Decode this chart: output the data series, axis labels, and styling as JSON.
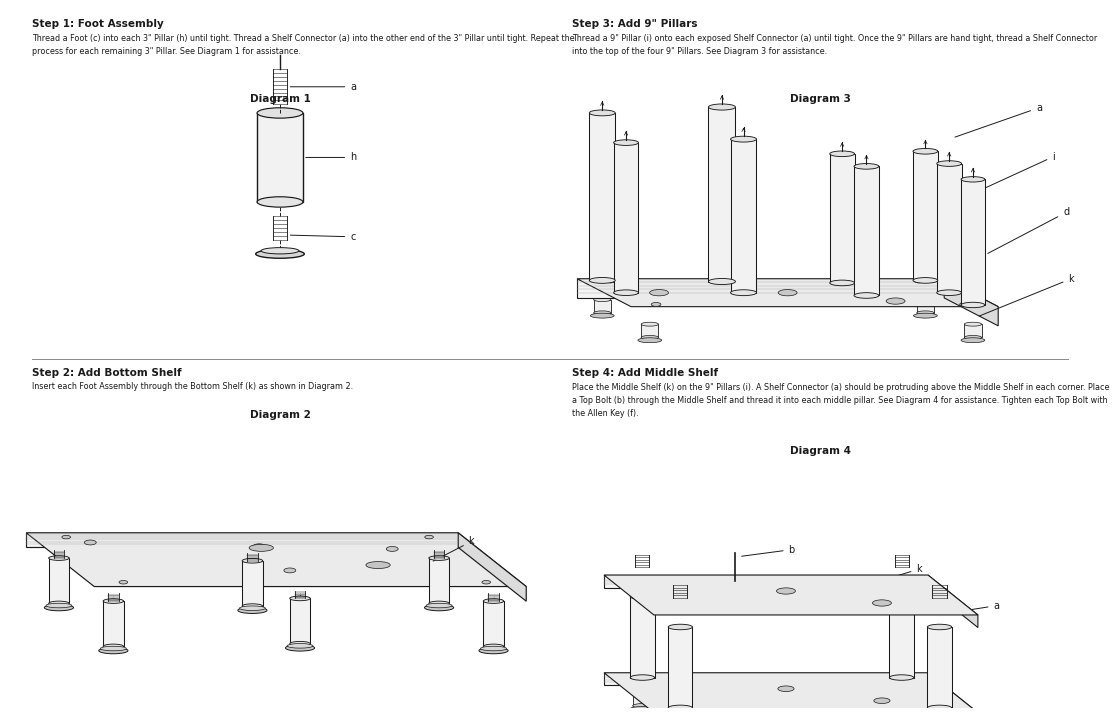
{
  "bg_color": "#ffffff",
  "lc": "#1a1a1a",
  "tc": "#1a1a1a",
  "step1_title": "Step 1: Foot Assembly",
  "step1_body": "Thread a Foot (c) into each 3\" Pillar (h) until tight. Thread a Shelf Connector (a) into the other end of the 3\" Pillar until tight. Repeat the\nprocess for each remaining 3\" Pillar. See Diagram 1 for assistance.",
  "step1_diag": "Diagram 1",
  "step2_title": "Step 2: Add Bottom Shelf",
  "step2_body": "Insert each Foot Assembly through the Bottom Shelf (k) as shown in Diagram 2.",
  "step2_diag": "Diagram 2",
  "step3_title": "Step 3: Add 9\" Pillars",
  "step3_body": "Thread a 9\" Pillar (i) onto each exposed Shelf Connector (a) until tight. Once the 9\" Pillars are hand tight, thread a Shelf Connector\ninto the top of the four 9\" Pillars. See Diagram 3 for assistance.",
  "step3_diag": "Diagram 3",
  "step4_title": "Step 4: Add Middle Shelf",
  "step4_body": "Place the Middle Shelf (k) on the 9\" Pillars (i). A Shelf Connector (a) should be protruding above the Middle Shelf in each corner. Place\na Top Bolt (b) through the Middle Shelf and thread it into each middle pillar. See Diagram 4 for assistance. Tighten each Top Bolt with\nthe Allen Key (f).",
  "step4_diag": "Diagram 4"
}
